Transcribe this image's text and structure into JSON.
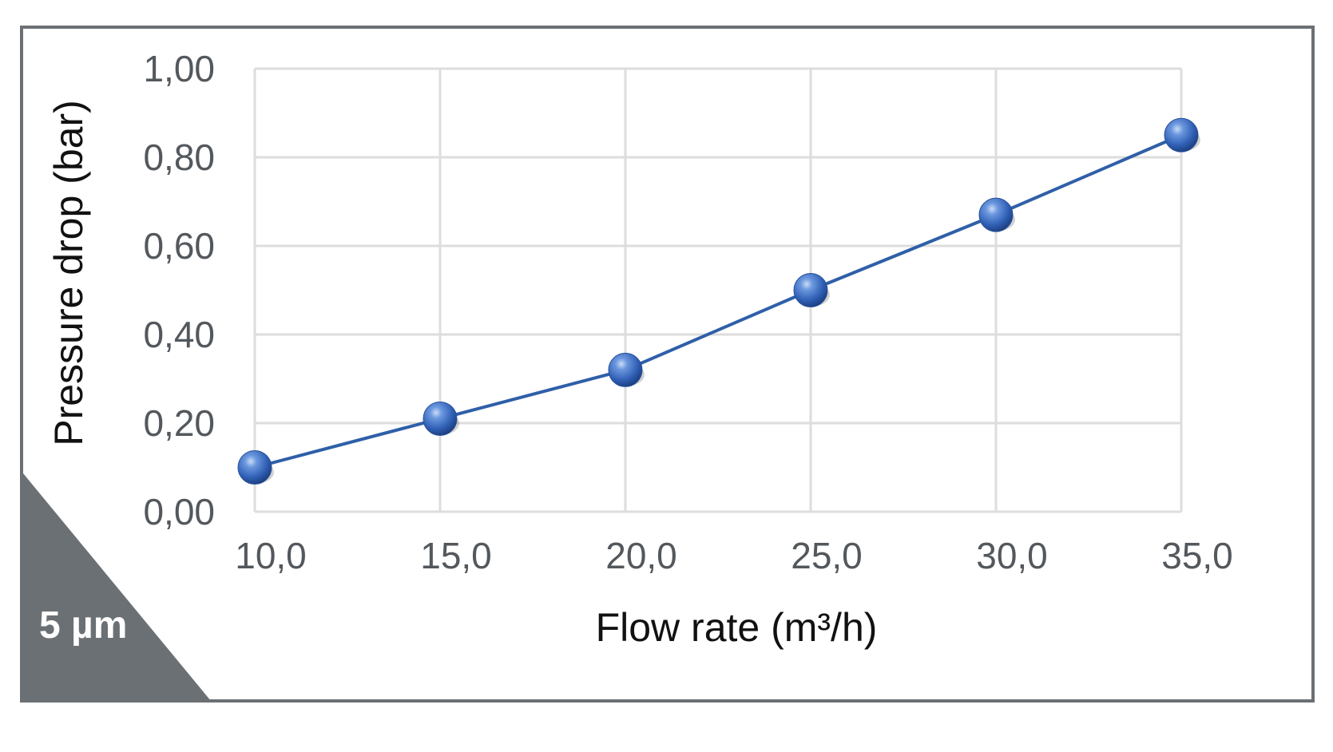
{
  "chart_data": {
    "type": "line",
    "title": "",
    "xlabel": "Flow rate (m³/h)",
    "ylabel": "Pressure drop (bar)",
    "x": [
      10,
      15,
      20,
      25,
      30,
      35
    ],
    "x_tick_labels": [
      "10,0",
      "15,0",
      "20,0",
      "25,0",
      "30,0",
      "35,0"
    ],
    "y_tick_values": [
      0,
      0.2,
      0.4,
      0.6,
      0.8,
      1.0
    ],
    "y_tick_labels": [
      "0,00",
      "0,20",
      "0,40",
      "0,60",
      "0,80",
      "1,00"
    ],
    "xlim": [
      10,
      35
    ],
    "ylim": [
      0,
      1.0
    ],
    "grid": true,
    "series": [
      {
        "values": [
          0.1,
          0.21,
          0.32,
          0.5,
          0.67,
          0.85
        ]
      }
    ],
    "colors": {
      "line": "#2f5fa8",
      "marker": "#2f63b8",
      "grid": "#dddddd",
      "badge": "#6b7075"
    }
  },
  "badge": {
    "label": "5 µm"
  }
}
